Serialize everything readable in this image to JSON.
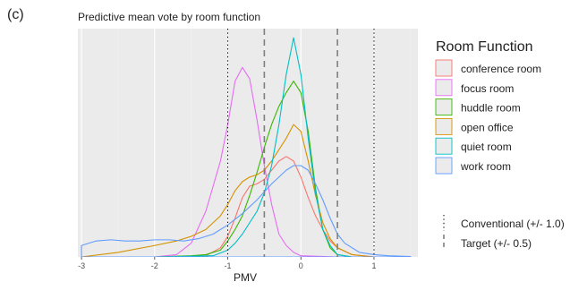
{
  "panel_label": "(c)",
  "colors": {
    "panel_bg": "#ebebeb",
    "grid_major": "#ffffff",
    "grid_minor": "#f3f3f3",
    "text": "#333333",
    "ref_line": "#7f7f7f"
  },
  "chart_data": {
    "type": "area",
    "title": "Predictive mean vote by room function",
    "xlabel": "PMV",
    "ylabel": "",
    "xlim": [
      -3.05,
      1.6
    ],
    "xticks": [
      -3,
      -2,
      -1,
      0,
      1
    ],
    "xtick_labels": [
      "-3",
      "-2",
      "-1",
      "0",
      "1"
    ],
    "ylim": [
      0,
      1.0
    ],
    "grid": true,
    "legend": {
      "title": "Room Function",
      "placement": "right",
      "entries": [
        "conference room",
        "focus room",
        "huddle room",
        "open office",
        "quiet room",
        "work room"
      ]
    },
    "series": [
      {
        "name": "conference room",
        "color": "#f8766d",
        "points": [
          [
            -3,
            0
          ],
          [
            -2,
            0
          ],
          [
            -1.3,
            0.005
          ],
          [
            -1.1,
            0.04
          ],
          [
            -1.0,
            0.09
          ],
          [
            -0.9,
            0.17
          ],
          [
            -0.8,
            0.26
          ],
          [
            -0.7,
            0.31
          ],
          [
            -0.6,
            0.32
          ],
          [
            -0.5,
            0.34
          ],
          [
            -0.4,
            0.38
          ],
          [
            -0.3,
            0.42
          ],
          [
            -0.2,
            0.44
          ],
          [
            -0.1,
            0.42
          ],
          [
            0.0,
            0.35
          ],
          [
            0.1,
            0.26
          ],
          [
            0.2,
            0.18
          ],
          [
            0.3,
            0.12
          ],
          [
            0.4,
            0.07
          ],
          [
            0.5,
            0.04
          ],
          [
            0.7,
            0.01
          ],
          [
            1.0,
            0.0
          ],
          [
            1.5,
            0.0
          ]
        ]
      },
      {
        "name": "focus room",
        "color": "#e76bf3",
        "points": [
          [
            -3,
            0
          ],
          [
            -2,
            0
          ],
          [
            -1.7,
            0.01
          ],
          [
            -1.5,
            0.06
          ],
          [
            -1.3,
            0.2
          ],
          [
            -1.1,
            0.42
          ],
          [
            -1.0,
            0.58
          ],
          [
            -0.9,
            0.77
          ],
          [
            -0.8,
            0.83
          ],
          [
            -0.7,
            0.78
          ],
          [
            -0.6,
            0.6
          ],
          [
            -0.5,
            0.4
          ],
          [
            -0.4,
            0.23
          ],
          [
            -0.3,
            0.1
          ],
          [
            -0.2,
            0.05
          ],
          [
            -0.1,
            0.02
          ],
          [
            0.0,
            0.005
          ],
          [
            0.5,
            0
          ],
          [
            1.5,
            0
          ]
        ]
      },
      {
        "name": "huddle room",
        "color": "#39b600",
        "points": [
          [
            -3,
            0
          ],
          [
            -2,
            0
          ],
          [
            -1.5,
            0.005
          ],
          [
            -1.3,
            0.01
          ],
          [
            -1.1,
            0.03
          ],
          [
            -1.0,
            0.07
          ],
          [
            -0.9,
            0.12
          ],
          [
            -0.8,
            0.18
          ],
          [
            -0.7,
            0.27
          ],
          [
            -0.6,
            0.37
          ],
          [
            -0.5,
            0.48
          ],
          [
            -0.4,
            0.58
          ],
          [
            -0.3,
            0.66
          ],
          [
            -0.2,
            0.72
          ],
          [
            -0.1,
            0.77
          ],
          [
            0.0,
            0.72
          ],
          [
            0.1,
            0.55
          ],
          [
            0.2,
            0.3
          ],
          [
            0.3,
            0.12
          ],
          [
            0.4,
            0.04
          ],
          [
            0.5,
            0.01
          ],
          [
            0.7,
            0
          ],
          [
            1.5,
            0
          ]
        ]
      },
      {
        "name": "open office",
        "color": "#d39200",
        "points": [
          [
            -3,
            0
          ],
          [
            -2.5,
            0.02
          ],
          [
            -2,
            0.05
          ],
          [
            -1.7,
            0.07
          ],
          [
            -1.5,
            0.09
          ],
          [
            -1.3,
            0.12
          ],
          [
            -1.1,
            0.18
          ],
          [
            -1.0,
            0.23
          ],
          [
            -0.9,
            0.29
          ],
          [
            -0.8,
            0.33
          ],
          [
            -0.7,
            0.35
          ],
          [
            -0.6,
            0.36
          ],
          [
            -0.5,
            0.38
          ],
          [
            -0.4,
            0.42
          ],
          [
            -0.3,
            0.47
          ],
          [
            -0.2,
            0.52
          ],
          [
            -0.1,
            0.58
          ],
          [
            0.0,
            0.55
          ],
          [
            0.1,
            0.42
          ],
          [
            0.2,
            0.27
          ],
          [
            0.3,
            0.15
          ],
          [
            0.4,
            0.08
          ],
          [
            0.5,
            0.04
          ],
          [
            0.7,
            0.01
          ],
          [
            1.0,
            0
          ],
          [
            1.5,
            0
          ]
        ]
      },
      {
        "name": "quiet room",
        "color": "#00bfc4",
        "points": [
          [
            -3,
            0
          ],
          [
            -2,
            0
          ],
          [
            -1.2,
            0.005
          ],
          [
            -1.0,
            0.03
          ],
          [
            -0.9,
            0.06
          ],
          [
            -0.8,
            0.1
          ],
          [
            -0.7,
            0.15
          ],
          [
            -0.6,
            0.2
          ],
          [
            -0.5,
            0.28
          ],
          [
            -0.4,
            0.4
          ],
          [
            -0.3,
            0.58
          ],
          [
            -0.2,
            0.8
          ],
          [
            -0.1,
            0.96
          ],
          [
            0.0,
            0.8
          ],
          [
            0.1,
            0.52
          ],
          [
            0.2,
            0.28
          ],
          [
            0.3,
            0.12
          ],
          [
            0.4,
            0.05
          ],
          [
            0.5,
            0.01
          ],
          [
            0.7,
            0
          ],
          [
            1.5,
            0
          ]
        ]
      },
      {
        "name": "work room",
        "color": "#619cff",
        "points": [
          [
            -3,
            0.05
          ],
          [
            -2.8,
            0.07
          ],
          [
            -2.6,
            0.075
          ],
          [
            -2.4,
            0.07
          ],
          [
            -2.2,
            0.07
          ],
          [
            -2.0,
            0.075
          ],
          [
            -1.8,
            0.075
          ],
          [
            -1.6,
            0.07
          ],
          [
            -1.4,
            0.08
          ],
          [
            -1.2,
            0.1
          ],
          [
            -1.0,
            0.14
          ],
          [
            -0.8,
            0.19
          ],
          [
            -0.6,
            0.25
          ],
          [
            -0.4,
            0.32
          ],
          [
            -0.2,
            0.38
          ],
          [
            -0.1,
            0.4
          ],
          [
            0.0,
            0.4
          ],
          [
            0.1,
            0.38
          ],
          [
            0.2,
            0.32
          ],
          [
            0.3,
            0.25
          ],
          [
            0.4,
            0.17
          ],
          [
            0.5,
            0.1
          ],
          [
            0.6,
            0.06
          ],
          [
            0.8,
            0.02
          ],
          [
            1.0,
            0.01
          ],
          [
            1.2,
            0.005
          ],
          [
            1.5,
            0.002
          ]
        ]
      }
    ],
    "reference_lines": [
      {
        "name": "Conventional (+/- 1.0)",
        "values": [
          -1.0,
          1.0
        ],
        "style": "dotted",
        "color": "#000000"
      },
      {
        "name": "Target (+/- 0.5)",
        "values": [
          -0.5,
          0.5
        ],
        "style": "dashed",
        "color": "#7f7f7f"
      }
    ]
  }
}
